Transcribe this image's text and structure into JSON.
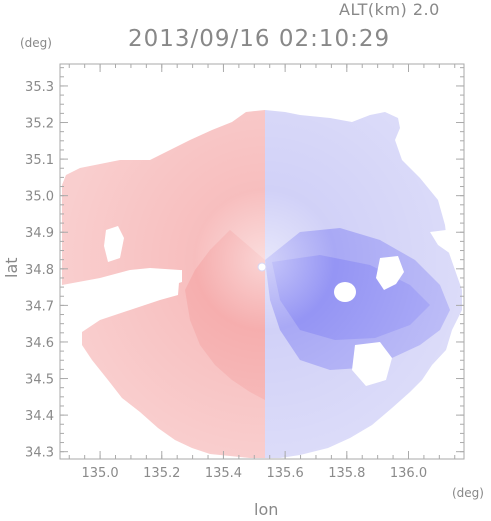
{
  "header": {
    "title": "2013/09/16 02:10:29",
    "altitude_label": "ALT(km) 2.0"
  },
  "axes": {
    "y_unit": "(deg)",
    "x_unit": "(deg)",
    "y_label": "lat",
    "x_label": "lon"
  },
  "map": {
    "lon_range": [
      134.87,
      136.18
    ],
    "lat_range": [
      34.28,
      35.36
    ],
    "lon_ticks": [
      135.0,
      135.2,
      135.4,
      135.6,
      135.8,
      136.0
    ],
    "lat_ticks": [
      34.3,
      34.4,
      34.5,
      34.6,
      34.7,
      34.8,
      34.9,
      35.0,
      35.1,
      35.2,
      35.3
    ],
    "radar_center": [
      135.525,
      34.805
    ],
    "colors": {
      "receding": "#f08a8a",
      "approaching": "#6b6bf0",
      "axis": "#aaaaaa",
      "background": "#ffffff"
    }
  }
}
